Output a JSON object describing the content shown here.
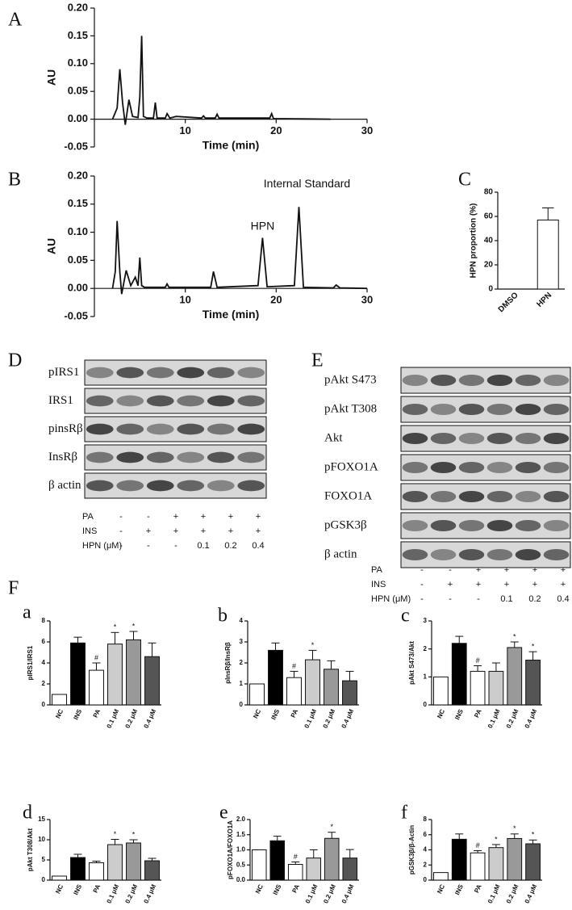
{
  "chart_data": [
    {
      "type": "line",
      "label": "A",
      "ylabel": "AU",
      "xlabel": "Time (min)",
      "color": "#111111",
      "xlim": [
        0,
        30
      ],
      "xticks": [
        10,
        20,
        30
      ],
      "ylim": [
        -0.05,
        0.2
      ],
      "yticks": [
        {
          "value": -0.05,
          "label": "-0.05"
        },
        {
          "value": 0,
          "label": "0.00"
        },
        {
          "value": 0.05,
          "label": "0.05"
        },
        {
          "value": 0.1,
          "label": "0.10"
        },
        {
          "value": 0.15,
          "label": "0.15"
        },
        {
          "value": 0.2,
          "label": "0.20"
        }
      ],
      "x": [
        2,
        2.5,
        2.8,
        3.1,
        3.4,
        3.8,
        4.2,
        4.8,
        5.0,
        5.2,
        5.4,
        5.8,
        6.5,
        6.7,
        6.9,
        7.8,
        8.0,
        8.3,
        9.0,
        11.8,
        12.0,
        12.2,
        13.3,
        13.5,
        13.7,
        19.3,
        19.5,
        19.7,
        26
      ],
      "values": [
        0,
        0.02,
        0.09,
        0.03,
        -0.01,
        0.035,
        0.005,
        0.003,
        0.04,
        0.15,
        0.005,
        0.002,
        0.002,
        0.03,
        0.002,
        0.002,
        0.01,
        0.002,
        0.005,
        0.002,
        0.006,
        0.002,
        0.002,
        0.009,
        0.002,
        0.002,
        0.01,
        0.001,
        0
      ]
    },
    {
      "type": "line",
      "label": "B",
      "ylabel": "AU",
      "xlabel": "Time (min)",
      "color": "#111111",
      "annotations": [
        "HPN",
        "Internal Standard"
      ],
      "xlim": [
        0,
        30
      ],
      "xticks": [
        10,
        20,
        30
      ],
      "ylim": [
        -0.05,
        0.2
      ],
      "yticks": [
        {
          "value": -0.05,
          "label": "-0.05"
        },
        {
          "value": 0,
          "label": "0.00"
        },
        {
          "value": 0.05,
          "label": "0.05"
        },
        {
          "value": 0.1,
          "label": "0.10"
        },
        {
          "value": 0.15,
          "label": "0.15"
        },
        {
          "value": 0.2,
          "label": "0.20"
        }
      ],
      "x": [
        2,
        2.3,
        2.5,
        2.8,
        3.0,
        3.5,
        4.0,
        4.5,
        4.8,
        5.0,
        5.2,
        5.5,
        7.8,
        8.0,
        8.2,
        12.8,
        13.1,
        13.5,
        18.0,
        18.5,
        19.0,
        22.0,
        22.5,
        23.0,
        26.3,
        26.6,
        27,
        30
      ],
      "values": [
        0,
        0.03,
        0.12,
        0.03,
        -0.01,
        0.032,
        0.005,
        0.02,
        0.005,
        0.055,
        0.005,
        0.002,
        0.002,
        0.008,
        0.002,
        0.002,
        0.03,
        0.002,
        0.005,
        0.09,
        0.003,
        0.005,
        0.145,
        0.002,
        0.001,
        0.006,
        0.001,
        0
      ]
    },
    {
      "type": "bar",
      "label": "C",
      "ylabel": "HPN proportion (%)",
      "categories": [
        "DMSO",
        "HPN"
      ],
      "values": [
        0,
        57
      ],
      "errors": [
        null,
        10
      ],
      "colors": [
        "#ffffff",
        "#ffffff"
      ],
      "ylim": [
        0,
        80
      ],
      "yticks": [
        0,
        20,
        40,
        60,
        80
      ]
    },
    {
      "type": "bar",
      "label": "a",
      "ylabel": "pIRS1/IRS1",
      "categories": [
        "NC",
        "INS",
        "PA",
        "0.1 μM",
        "0.2 μM",
        "0.4 μM"
      ],
      "values": [
        1,
        5.9,
        3.3,
        5.8,
        6.2,
        4.6
      ],
      "errors": [
        null,
        0.55,
        0.7,
        1.1,
        0.8,
        1.3
      ],
      "sig_labels": [
        null,
        null,
        "#",
        "*",
        "*",
        null
      ],
      "colors": [
        "#ffffff",
        "#000000",
        "#ffffff",
        "#cccccc",
        "#999999",
        "#555555"
      ],
      "ylim": [
        0,
        8
      ],
      "yticks": [
        0,
        2,
        4,
        6,
        8
      ]
    },
    {
      "type": "bar",
      "label": "b",
      "ylabel": "pInsRβ/InsRβ",
      "categories": [
        "NC",
        "INS",
        "PA",
        "0.1 μM",
        "0.2 μM",
        "0.4 μM"
      ],
      "values": [
        1,
        2.6,
        1.3,
        2.15,
        1.7,
        1.15
      ],
      "errors": [
        null,
        0.35,
        0.3,
        0.45,
        0.4,
        0.45
      ],
      "sig_labels": [
        null,
        null,
        "#",
        "*",
        null,
        null
      ],
      "colors": [
        "#ffffff",
        "#000000",
        "#ffffff",
        "#cccccc",
        "#999999",
        "#555555"
      ],
      "ylim": [
        0,
        4
      ],
      "yticks": [
        0,
        1,
        2,
        3,
        4
      ]
    },
    {
      "type": "bar",
      "label": "c",
      "ylabel": "pAkt S473/Akt",
      "categories": [
        "NC",
        "INS",
        "PA",
        "0.1 μM",
        "0.2 μM",
        "0.4 μM"
      ],
      "values": [
        1,
        2.2,
        1.2,
        1.2,
        2.05,
        1.6
      ],
      "errors": [
        null,
        0.25,
        0.2,
        0.3,
        0.2,
        0.3
      ],
      "sig_labels": [
        null,
        null,
        "#",
        null,
        "*",
        "*"
      ],
      "colors": [
        "#ffffff",
        "#000000",
        "#ffffff",
        "#cccccc",
        "#999999",
        "#555555"
      ],
      "ylim": [
        0,
        3
      ],
      "yticks": [
        0,
        1,
        2,
        3
      ]
    },
    {
      "type": "bar",
      "label": "d",
      "ylabel": "pAkt T308/Akt",
      "categories": [
        "NC",
        "INS",
        "PA",
        "0.1 μM",
        "0.2 μM",
        "0.4 μM"
      ],
      "values": [
        1,
        5.6,
        4.3,
        8.8,
        9.2,
        4.8
      ],
      "errors": [
        null,
        0.8,
        0.4,
        1.3,
        0.8,
        0.6
      ],
      "sig_labels": [
        null,
        null,
        null,
        "*",
        "*",
        null
      ],
      "colors": [
        "#ffffff",
        "#000000",
        "#ffffff",
        "#cccccc",
        "#999999",
        "#555555"
      ],
      "ylim": [
        0,
        15
      ],
      "yticks": [
        0,
        5,
        10,
        15
      ]
    },
    {
      "type": "bar",
      "label": "e",
      "ylabel": "pFOXO1A/FOXO1A",
      "categories": [
        "NC",
        "INS",
        "PA",
        "0.1 μM",
        "0.2 μM",
        "0.4 μM"
      ],
      "values": [
        1,
        1.3,
        0.52,
        0.73,
        1.38,
        0.73
      ],
      "errors": [
        null,
        0.15,
        0.08,
        0.27,
        0.2,
        0.28
      ],
      "sig_labels": [
        null,
        null,
        "#",
        null,
        "*",
        null
      ],
      "colors": [
        "#ffffff",
        "#000000",
        "#ffffff",
        "#cccccc",
        "#999999",
        "#555555"
      ],
      "ylim": [
        0,
        2
      ],
      "yticks": [
        {
          "value": 0,
          "label": "0.0"
        },
        {
          "value": 0.5,
          "label": "0.5"
        },
        1.5,
        {
          "value": 1,
          "label": "1.0"
        },
        {
          "value": 2,
          "label": "2.0"
        }
      ]
    },
    {
      "type": "bar",
      "label": "f",
      "ylabel": "pGSK3β/β-Actin",
      "categories": [
        "NC",
        "INS",
        "PA",
        "0.1 μM",
        "0.2 μM",
        "0.4 μM"
      ],
      "values": [
        1,
        5.4,
        3.6,
        4.3,
        5.5,
        4.8
      ],
      "errors": [
        null,
        0.7,
        0.3,
        0.4,
        0.6,
        0.5
      ],
      "sig_labels": [
        null,
        null,
        "#",
        "*",
        "*",
        "*"
      ],
      "colors": [
        "#ffffff",
        "#000000",
        "#ffffff",
        "#cccccc",
        "#999999",
        "#555555"
      ],
      "ylim": [
        0,
        8
      ],
      "yticks": [
        0,
        2,
        4,
        6,
        8
      ]
    }
  ],
  "blots": [
    {
      "label": "D",
      "rows": [
        "pIRS1",
        "IRS1",
        "pinsRβ",
        "InsRβ",
        "β actin"
      ],
      "treatments": [
        {
          "name": "PA",
          "values": [
            "-",
            "-",
            "+",
            "+",
            "+",
            "+"
          ]
        },
        {
          "name": "INS",
          "values": [
            "-",
            "+",
            "+",
            "+",
            "+",
            "+"
          ]
        },
        {
          "name": "HPN (μM)",
          "values": [
            "-",
            "-",
            "-",
            "0.1",
            "0.2",
            "0.4"
          ]
        }
      ]
    },
    {
      "label": "E",
      "rows": [
        "pAkt S473",
        "pAkt T308",
        "Akt",
        "pFOXO1A",
        "FOXO1A",
        "pGSK3β",
        "β actin"
      ],
      "treatments": [
        {
          "name": "PA",
          "values": [
            "-",
            "-",
            "+",
            "+",
            "+",
            "+"
          ]
        },
        {
          "name": "INS",
          "values": [
            "-",
            "+",
            "+",
            "+",
            "+",
            "+"
          ]
        },
        {
          "name": "HPN (μM)",
          "values": [
            "-",
            "-",
            "-",
            "0.1",
            "0.2",
            "0.4"
          ]
        }
      ]
    }
  ],
  "section_label": "F"
}
